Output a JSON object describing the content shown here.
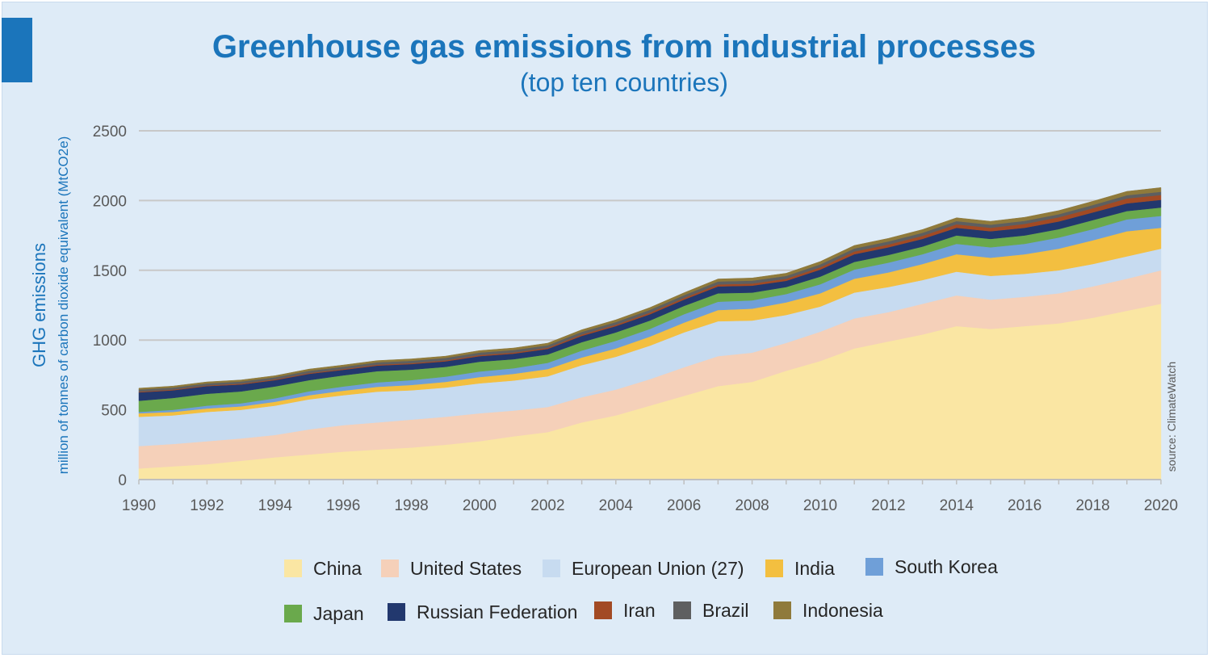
{
  "chart_data": {
    "type": "area",
    "stacked": true,
    "title": "Greenhouse gas emissions from industrial processes",
    "subtitle": "(top ten countries)",
    "ylabel": "GHG emissions",
    "ylabel_sub": "million of tonnes of carbon dioxide equivalent (MtCO2e)",
    "xlabel": "",
    "source": "source: ClimateWatch",
    "ylim": [
      0,
      2500
    ],
    "yticks": [
      "0",
      "500",
      "1000",
      "1500",
      "2000",
      "2500"
    ],
    "xtick_labels": [
      "1990",
      "1992",
      "1994",
      "1996",
      "1998",
      "2000",
      "2002",
      "2004",
      "2006",
      "2008",
      "2010",
      "2012",
      "2014",
      "2016",
      "2018",
      "2020"
    ],
    "x": [
      1990,
      1991,
      1992,
      1993,
      1994,
      1995,
      1996,
      1997,
      1998,
      1999,
      2000,
      2001,
      2002,
      2003,
      2004,
      2005,
      2006,
      2007,
      2008,
      2009,
      2010,
      2011,
      2012,
      2013,
      2014,
      2015,
      2016,
      2017,
      2018,
      2019,
      2020
    ],
    "series": [
      {
        "name": "China",
        "color": "#fae6a3",
        "values": [
          80,
          95,
          110,
          135,
          160,
          180,
          200,
          215,
          230,
          250,
          275,
          310,
          340,
          410,
          460,
          530,
          600,
          670,
          700,
          780,
          850,
          940,
          990,
          1040,
          1100,
          1080,
          1100,
          1120,
          1160,
          1210,
          1260
        ]
      },
      {
        "name": "United States",
        "color": "#f5d0b9",
        "values": [
          160,
          160,
          165,
          160,
          160,
          180,
          190,
          195,
          200,
          200,
          200,
          185,
          180,
          180,
          185,
          190,
          205,
          215,
          210,
          200,
          210,
          215,
          210,
          220,
          220,
          210,
          210,
          215,
          225,
          230,
          240
        ]
      },
      {
        "name": "European Union (27)",
        "color": "#c7dbf0",
        "values": [
          210,
          205,
          210,
          205,
          210,
          215,
          215,
          220,
          210,
          210,
          215,
          215,
          220,
          230,
          235,
          240,
          250,
          250,
          230,
          200,
          180,
          185,
          180,
          170,
          170,
          170,
          165,
          165,
          160,
          160,
          155
        ]
      },
      {
        "name": "India",
        "color": "#f3bf40",
        "values": [
          25,
          25,
          25,
          25,
          28,
          30,
          32,
          35,
          38,
          40,
          45,
          48,
          52,
          55,
          60,
          65,
          70,
          80,
          85,
          90,
          95,
          100,
          105,
          115,
          125,
          130,
          140,
          155,
          170,
          180,
          150
        ]
      },
      {
        "name": "South Korea",
        "color": "#6f9fd8",
        "values": [
          10,
          15,
          20,
          22,
          25,
          28,
          30,
          32,
          35,
          38,
          40,
          40,
          45,
          50,
          55,
          55,
          60,
          60,
          60,
          60,
          65,
          65,
          70,
          70,
          75,
          75,
          75,
          80,
          80,
          85,
          85
        ]
      },
      {
        "name": "Japan",
        "color": "#6aa94c",
        "values": [
          80,
          85,
          85,
          85,
          85,
          80,
          80,
          80,
          75,
          70,
          70,
          65,
          60,
          60,
          60,
          60,
          60,
          60,
          55,
          50,
          55,
          55,
          55,
          55,
          60,
          60,
          60,
          60,
          65,
          60,
          60
        ]
      },
      {
        "name": "Russian Federation",
        "color": "#22386e",
        "values": [
          60,
          55,
          55,
          50,
          45,
          45,
          40,
          40,
          40,
          40,
          40,
          40,
          40,
          45,
          45,
          45,
          45,
          50,
          50,
          45,
          50,
          55,
          55,
          55,
          55,
          55,
          55,
          55,
          55,
          55,
          55
        ]
      },
      {
        "name": "Iran",
        "color": "#a24a24",
        "values": [
          5,
          5,
          5,
          6,
          6,
          6,
          6,
          7,
          7,
          7,
          8,
          8,
          8,
          10,
          10,
          12,
          12,
          14,
          15,
          15,
          17,
          20,
          20,
          22,
          25,
          25,
          28,
          30,
          30,
          35,
          35
        ]
      },
      {
        "name": "Brazil",
        "color": "#5e5f60",
        "values": [
          15,
          15,
          15,
          15,
          15,
          16,
          16,
          17,
          17,
          17,
          18,
          18,
          18,
          19,
          19,
          20,
          20,
          21,
          21,
          20,
          21,
          22,
          22,
          22,
          23,
          22,
          22,
          22,
          23,
          23,
          23
        ]
      },
      {
        "name": "Indonesia",
        "color": "#8f7a3b",
        "values": [
          10,
          10,
          10,
          11,
          11,
          12,
          12,
          12,
          13,
          13,
          14,
          14,
          15,
          15,
          16,
          16,
          17,
          18,
          19,
          19,
          20,
          21,
          22,
          23,
          24,
          24,
          25,
          26,
          27,
          28,
          30
        ]
      }
    ]
  }
}
